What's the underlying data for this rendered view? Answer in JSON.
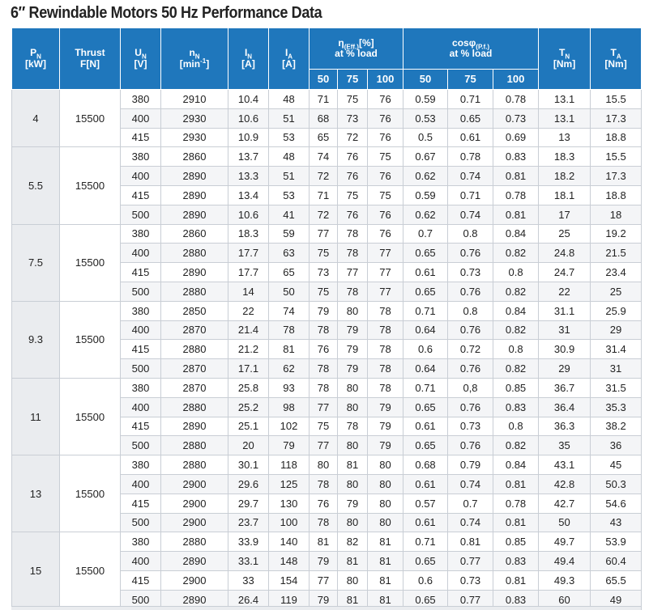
{
  "title": "6″ Rewindable Motors 50 Hz Performance Data",
  "header": {
    "pn": {
      "sym": "P",
      "sub": "N",
      "unit": "[kW]"
    },
    "thrust": {
      "label": "Thrust",
      "unit": "F[N]"
    },
    "un": {
      "sym": "U",
      "sub": "N",
      "unit": "[V]"
    },
    "nn": {
      "sym": "n",
      "sub": "N",
      "unit": "[min",
      "sup": "-1",
      "close": "]"
    },
    "in": {
      "sym": "I",
      "sub": "N",
      "unit": "[A]"
    },
    "ia": {
      "sym": "I",
      "sub": "A",
      "unit": "[A]"
    },
    "eff": {
      "sym": "η",
      "sub": "(Eff.)",
      "unit": "[%]",
      "load": "at % load"
    },
    "cos": {
      "sym": "cosφ",
      "sub": "(P.f.)",
      "load": "at % load"
    },
    "tn": {
      "sym": "T",
      "sub": "N",
      "unit": "[Nm]"
    },
    "ta": {
      "sym": "T",
      "sub": "A",
      "unit": "[Nm]"
    },
    "load_levels": [
      "50",
      "75",
      "100"
    ]
  },
  "groups": [
    {
      "pn": "4",
      "thrust": "15500",
      "rows": [
        [
          "380",
          "2910",
          "10.4",
          "48",
          "71",
          "75",
          "76",
          "0.59",
          "0.71",
          "0.78",
          "13.1",
          "15.5"
        ],
        [
          "400",
          "2930",
          "10.6",
          "51",
          "68",
          "73",
          "76",
          "0.53",
          "0.65",
          "0.73",
          "13.1",
          "17.3"
        ],
        [
          "415",
          "2930",
          "10.9",
          "53",
          "65",
          "72",
          "76",
          "0.5",
          "0.61",
          "0.69",
          "13",
          "18.8"
        ]
      ]
    },
    {
      "pn": "5.5",
      "thrust": "15500",
      "rows": [
        [
          "380",
          "2860",
          "13.7",
          "48",
          "74",
          "76",
          "75",
          "0.67",
          "0.78",
          "0.83",
          "18.3",
          "15.5"
        ],
        [
          "400",
          "2890",
          "13.3",
          "51",
          "72",
          "76",
          "76",
          "0.62",
          "0.74",
          "0.81",
          "18.2",
          "17.3"
        ],
        [
          "415",
          "2890",
          "13.4",
          "53",
          "71",
          "75",
          "75",
          "0.59",
          "0.71",
          "0.78",
          "18.1",
          "18.8"
        ],
        [
          "500",
          "2890",
          "10.6",
          "41",
          "72",
          "76",
          "76",
          "0.62",
          "0.74",
          "0.81",
          "17",
          "18"
        ]
      ]
    },
    {
      "pn": "7.5",
      "thrust": "15500",
      "rows": [
        [
          "380",
          "2860",
          "18.3",
          "59",
          "77",
          "78",
          "76",
          "0.7",
          "0.8",
          "0.84",
          "25",
          "19.2"
        ],
        [
          "400",
          "2880",
          "17.7",
          "63",
          "75",
          "78",
          "77",
          "0.65",
          "0.76",
          "0.82",
          "24.8",
          "21.5"
        ],
        [
          "415",
          "2890",
          "17.7",
          "65",
          "73",
          "77",
          "77",
          "0.61",
          "0.73",
          "0.8",
          "24.7",
          "23.4"
        ],
        [
          "500",
          "2880",
          "14",
          "50",
          "75",
          "78",
          "77",
          "0.65",
          "0.76",
          "0.82",
          "22",
          "25"
        ]
      ]
    },
    {
      "pn": "9.3",
      "thrust": "15500",
      "rows": [
        [
          "380",
          "2850",
          "22",
          "74",
          "79",
          "80",
          "78",
          "0.71",
          "0.8",
          "0.84",
          "31.1",
          "25.9"
        ],
        [
          "400",
          "2870",
          "21.4",
          "78",
          "78",
          "79",
          "78",
          "0.64",
          "0.76",
          "0.82",
          "31",
          "29"
        ],
        [
          "415",
          "2880",
          "21.2",
          "81",
          "76",
          "79",
          "78",
          "0.6",
          "0.72",
          "0.8",
          "30.9",
          "31.4"
        ],
        [
          "500",
          "2870",
          "17.1",
          "62",
          "78",
          "79",
          "78",
          "0.64",
          "0.76",
          "0.82",
          "29",
          "31"
        ]
      ]
    },
    {
      "pn": "11",
      "thrust": "15500",
      "rows": [
        [
          "380",
          "2870",
          "25.8",
          "93",
          "78",
          "80",
          "78",
          "0.71",
          "0,8",
          "0.85",
          "36.7",
          "31.5"
        ],
        [
          "400",
          "2880",
          "25.2",
          "98",
          "77",
          "80",
          "79",
          "0.65",
          "0.76",
          "0.83",
          "36.4",
          "35.3"
        ],
        [
          "415",
          "2890",
          "25.1",
          "102",
          "75",
          "78",
          "79",
          "0.61",
          "0.73",
          "0.8",
          "36.3",
          "38.2"
        ],
        [
          "500",
          "2880",
          "20",
          "79",
          "77",
          "80",
          "79",
          "0.65",
          "0.76",
          "0.82",
          "35",
          "36"
        ]
      ]
    },
    {
      "pn": "13",
      "thrust": "15500",
      "rows": [
        [
          "380",
          "2880",
          "30.1",
          "118",
          "80",
          "81",
          "80",
          "0.68",
          "0.79",
          "0.84",
          "43.1",
          "45"
        ],
        [
          "400",
          "2900",
          "29.6",
          "125",
          "78",
          "80",
          "80",
          "0.61",
          "0.74",
          "0.81",
          "42.8",
          "50.3"
        ],
        [
          "415",
          "2900",
          "29.7",
          "130",
          "76",
          "79",
          "80",
          "0.57",
          "0.7",
          "0.78",
          "42.7",
          "54.6"
        ],
        [
          "500",
          "2900",
          "23.7",
          "100",
          "78",
          "80",
          "80",
          "0.61",
          "0.74",
          "0.81",
          "50",
          "43"
        ]
      ]
    },
    {
      "pn": "15",
      "thrust": "15500",
      "rows": [
        [
          "380",
          "2880",
          "33.9",
          "140",
          "81",
          "82",
          "81",
          "0.71",
          "0.81",
          "0.85",
          "49.7",
          "53.9"
        ],
        [
          "400",
          "2890",
          "33.1",
          "148",
          "79",
          "81",
          "81",
          "0.65",
          "0.77",
          "0.83",
          "49.4",
          "60.4"
        ],
        [
          "415",
          "2900",
          "33",
          "154",
          "77",
          "80",
          "81",
          "0.6",
          "0.73",
          "0.81",
          "49.3",
          "65.5"
        ],
        [
          "500",
          "2890",
          "26.4",
          "119",
          "79",
          "81",
          "81",
          "0.65",
          "0.77",
          "0.83",
          "60",
          "49"
        ]
      ]
    }
  ]
}
